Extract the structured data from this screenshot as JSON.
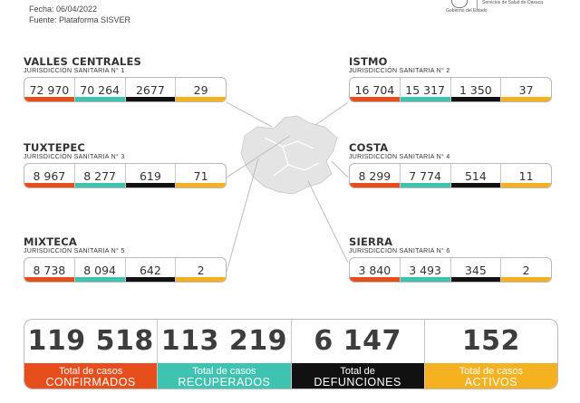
{
  "header": {
    "fecha": "Fecha: 06/04/2022",
    "fuente": "Fuente: Plataforma SISVER",
    "logo_left": "Gobierno del Estado",
    "logo_right": "Servicios de Salud de Oaxaca"
  },
  "colors": {
    "confirmed": "#e84e1b",
    "recovered": "#3ec3b1",
    "deaths": "#111111",
    "active": "#f5b120"
  },
  "regions": [
    {
      "name": "VALLES CENTRALES",
      "sub": "JURISDICCIÓN SANITARIA N° 1",
      "values": [
        "72 970",
        "70 264",
        "2677",
        "29"
      ]
    },
    {
      "name": "ISTMO",
      "sub": "JURISDICCIÓN SANITARIA N° 2",
      "values": [
        "16 704",
        "15 317",
        "1 350",
        "37"
      ]
    },
    {
      "name": "TUXTEPEC",
      "sub": "JURISDICCIÓN SANITARIA N° 3",
      "values": [
        "8 967",
        "8 277",
        "619",
        "71"
      ]
    },
    {
      "name": "COSTA",
      "sub": "JURISDICCIÓN SANITARIA N° 4",
      "values": [
        "8 299",
        "7 774",
        "514",
        "11"
      ]
    },
    {
      "name": "MIXTECA",
      "sub": "JURISDICCIÓN SANITARIA N° 5",
      "values": [
        "8 738",
        "8 094",
        "642",
        "2"
      ]
    },
    {
      "name": "SIERRA",
      "sub": "JURISDICCIÓN SANITARIA N° 6",
      "values": [
        "3 840",
        "3 493",
        "345",
        "2"
      ]
    }
  ],
  "totals": [
    {
      "value": "119 518",
      "line1": "Total de casos",
      "line2": "CONFIRMADOS"
    },
    {
      "value": "113 219",
      "line1": "Total de casos",
      "line2": "RECUPERADOS"
    },
    {
      "value": "6 147",
      "line1": "Total de",
      "line2": "DEFUNCIONES"
    },
    {
      "value": "152",
      "line1": "Total de casos",
      "line2": "ACTIVOS"
    }
  ]
}
